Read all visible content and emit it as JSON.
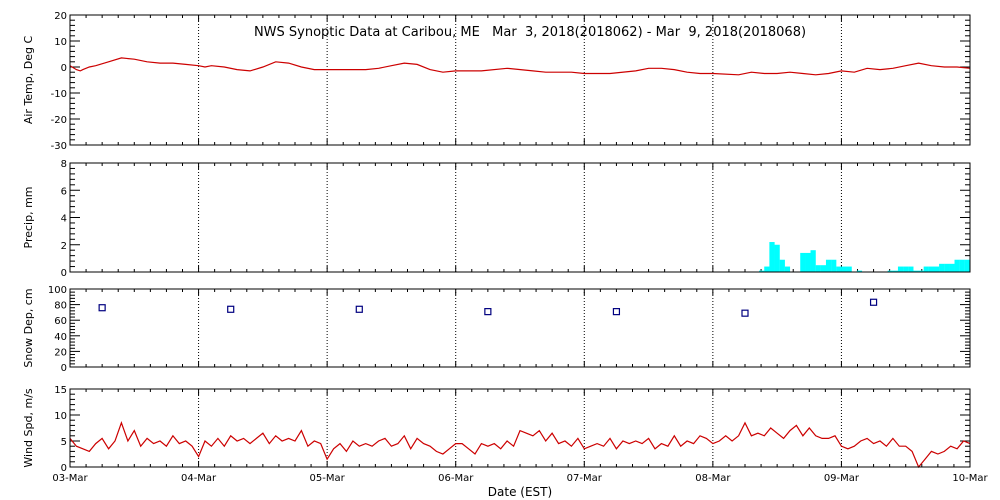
{
  "chart_data": [
    {
      "type": "line",
      "title": "NWS Synoptic Data at Caribou, ME   Mar  3, 2018(2018062) - Mar  9, 2018(2018068)",
      "ylabel": "Air Temp, Deg C",
      "ylim": [
        -30,
        20
      ],
      "yticks": [
        "20",
        "10",
        "0",
        "-10",
        "-20",
        "-30"
      ],
      "grid": "vertical dotted at day boundaries",
      "series": [
        {
          "color": "#cc0000",
          "x_days": [
            0.0,
            0.05,
            0.08,
            0.1,
            0.15,
            0.2,
            0.3,
            0.4,
            0.5,
            0.6,
            0.7,
            0.8,
            0.9,
            1.0,
            1.05,
            1.1,
            1.2,
            1.3,
            1.4,
            1.5,
            1.6,
            1.7,
            1.8,
            1.9,
            2.0,
            2.2,
            2.3,
            2.4,
            2.5,
            2.6,
            2.7,
            2.8,
            2.9,
            3.0,
            3.1,
            3.2,
            3.4,
            3.6,
            3.7,
            3.8,
            3.9,
            4.0,
            4.2,
            4.4,
            4.5,
            4.6,
            4.7,
            4.8,
            4.9,
            5.0,
            5.2,
            5.3,
            5.4,
            5.5,
            5.6,
            5.7,
            5.8,
            5.9,
            6.0,
            6.1,
            6.2,
            6.3,
            6.4,
            6.5,
            6.6,
            6.7,
            6.8,
            6.9,
            7.0
          ],
          "values": [
            0.5,
            -1.0,
            -1.5,
            -1.0,
            0.0,
            0.5,
            2.0,
            3.5,
            3.0,
            2.0,
            1.5,
            1.5,
            1.0,
            0.5,
            0.0,
            0.5,
            0.0,
            -1.0,
            -1.5,
            0.0,
            2.0,
            1.5,
            0.0,
            -1.0,
            -1.0,
            -1.0,
            -1.0,
            -0.5,
            0.5,
            1.5,
            1.0,
            -1.0,
            -2.0,
            -1.5,
            -1.5,
            -1.5,
            -0.5,
            -1.5,
            -2.0,
            -2.0,
            -2.0,
            -2.5,
            -2.5,
            -1.5,
            -0.5,
            -0.5,
            -1.0,
            -2.0,
            -2.5,
            -2.5,
            -3.0,
            -2.0,
            -2.5,
            -2.5,
            -2.0,
            -2.5,
            -3.0,
            -2.5,
            -1.5,
            -2.0,
            -0.5,
            -1.0,
            -0.5,
            0.5,
            1.5,
            0.5,
            0.0,
            0.0,
            -0.5
          ]
        }
      ]
    },
    {
      "type": "bar",
      "ylabel": "Precip, mm",
      "ylim": [
        0,
        8
      ],
      "yticks": [
        "8",
        "6",
        "4",
        "2",
        "0"
      ],
      "series": [
        {
          "color": "#00ffff",
          "x_days": [
            5.38,
            5.42,
            5.46,
            5.5,
            5.54,
            5.58,
            5.7,
            5.74,
            5.78,
            5.82,
            5.86,
            5.9,
            5.94,
            5.98,
            6.02,
            6.06,
            6.14,
            6.38,
            6.42,
            6.46,
            6.5,
            6.54,
            6.58,
            6.62,
            6.66,
            6.7,
            6.74,
            6.78,
            6.82,
            6.86,
            6.9,
            6.94,
            6.98
          ],
          "values": [
            0.1,
            0.4,
            2.2,
            2.0,
            0.9,
            0.4,
            1.4,
            1.4,
            1.6,
            0.5,
            0.5,
            0.9,
            0.9,
            0.4,
            0.4,
            0.4,
            0.1,
            0.1,
            0.1,
            0.4,
            0.4,
            0.4,
            0.1,
            0.1,
            0.4,
            0.4,
            0.4,
            0.6,
            0.6,
            0.6,
            0.9,
            0.9,
            0.9
          ]
        }
      ]
    },
    {
      "type": "scatter",
      "ylabel": "Snow Dep, cm",
      "ylim": [
        0,
        100
      ],
      "yticks": [
        "100",
        "80",
        "60",
        "40",
        "20",
        "0"
      ],
      "series": [
        {
          "color": "#000080",
          "x_days": [
            0.25,
            1.25,
            2.25,
            3.25,
            4.25,
            5.25,
            6.25
          ],
          "values": [
            76,
            74,
            74,
            71,
            71,
            69,
            83
          ]
        }
      ]
    },
    {
      "type": "line",
      "ylabel": "Wind Spd, m/s",
      "xlabel": "Date (EST)",
      "ylim": [
        0,
        15
      ],
      "yticks": [
        "15",
        "10",
        "5",
        "0"
      ],
      "xticks": [
        "03-Mar",
        "04-Mar",
        "05-Mar",
        "06-Mar",
        "07-Mar",
        "08-Mar",
        "09-Mar",
        "10-Mar"
      ],
      "series": [
        {
          "color": "#cc0000",
          "x_days": [
            0.0,
            0.05,
            0.1,
            0.15,
            0.2,
            0.25,
            0.3,
            0.35,
            0.4,
            0.45,
            0.5,
            0.55,
            0.6,
            0.65,
            0.7,
            0.75,
            0.8,
            0.85,
            0.9,
            0.95,
            1.0,
            1.05,
            1.1,
            1.15,
            1.2,
            1.25,
            1.3,
            1.35,
            1.4,
            1.45,
            1.5,
            1.55,
            1.6,
            1.65,
            1.7,
            1.75,
            1.8,
            1.85,
            1.9,
            1.95,
            2.0,
            2.05,
            2.1,
            2.15,
            2.2,
            2.25,
            2.3,
            2.35,
            2.4,
            2.45,
            2.5,
            2.55,
            2.6,
            2.65,
            2.7,
            2.75,
            2.8,
            2.85,
            2.9,
            2.95,
            3.0,
            3.05,
            3.1,
            3.15,
            3.2,
            3.25,
            3.3,
            3.35,
            3.4,
            3.45,
            3.5,
            3.55,
            3.6,
            3.65,
            3.7,
            3.75,
            3.8,
            3.85,
            3.9,
            3.95,
            4.0,
            4.05,
            4.1,
            4.15,
            4.2,
            4.25,
            4.3,
            4.35,
            4.4,
            4.45,
            4.5,
            4.55,
            4.6,
            4.65,
            4.7,
            4.75,
            4.8,
            4.85,
            4.9,
            4.95,
            5.0,
            5.05,
            5.1,
            5.15,
            5.2,
            5.25,
            5.3,
            5.35,
            5.4,
            5.45,
            5.5,
            5.55,
            5.6,
            5.65,
            5.7,
            5.75,
            5.8,
            5.85,
            5.9,
            5.95,
            6.0,
            6.05,
            6.1,
            6.15,
            6.2,
            6.25,
            6.3,
            6.35,
            6.4,
            6.45,
            6.5,
            6.55,
            6.6,
            6.65,
            6.7,
            6.75,
            6.8,
            6.85,
            6.9,
            6.95,
            7.0
          ],
          "values": [
            5.5,
            4.0,
            3.5,
            3.0,
            4.5,
            5.5,
            3.5,
            5.0,
            8.5,
            5.0,
            7.0,
            4.0,
            5.5,
            4.5,
            5.0,
            4.0,
            6.0,
            4.5,
            5.0,
            4.0,
            2.0,
            5.0,
            4.0,
            5.5,
            4.0,
            6.0,
            5.0,
            5.5,
            4.5,
            5.5,
            6.5,
            4.5,
            6.0,
            5.0,
            5.5,
            5.0,
            7.0,
            4.0,
            5.0,
            4.5,
            1.5,
            3.5,
            4.5,
            3.0,
            5.0,
            4.0,
            4.5,
            4.0,
            5.0,
            5.5,
            4.0,
            4.5,
            6.0,
            3.5,
            5.5,
            4.5,
            4.0,
            3.0,
            2.5,
            3.5,
            4.5,
            4.5,
            3.5,
            2.5,
            4.5,
            4.0,
            4.5,
            3.5,
            5.0,
            4.0,
            7.0,
            6.5,
            6.0,
            7.0,
            5.0,
            6.5,
            4.5,
            5.0,
            4.0,
            5.5,
            3.5,
            4.0,
            4.5,
            4.0,
            5.5,
            3.5,
            5.0,
            4.5,
            5.0,
            4.5,
            5.5,
            3.5,
            4.5,
            4.0,
            6.0,
            4.0,
            5.0,
            4.5,
            6.0,
            5.5,
            4.5,
            5.0,
            6.0,
            5.0,
            6.0,
            8.5,
            6.0,
            6.5,
            6.0,
            7.5,
            6.5,
            5.5,
            7.0,
            8.0,
            6.0,
            7.5,
            6.0,
            5.5,
            5.5,
            6.0,
            4.0,
            3.5,
            4.0,
            5.0,
            5.5,
            4.5,
            5.0,
            4.0,
            5.5,
            4.0,
            4.0,
            3.0,
            0.0,
            1.5,
            3.0,
            2.5,
            3.0,
            4.0,
            3.5,
            5.0,
            4.5
          ]
        }
      ]
    }
  ]
}
